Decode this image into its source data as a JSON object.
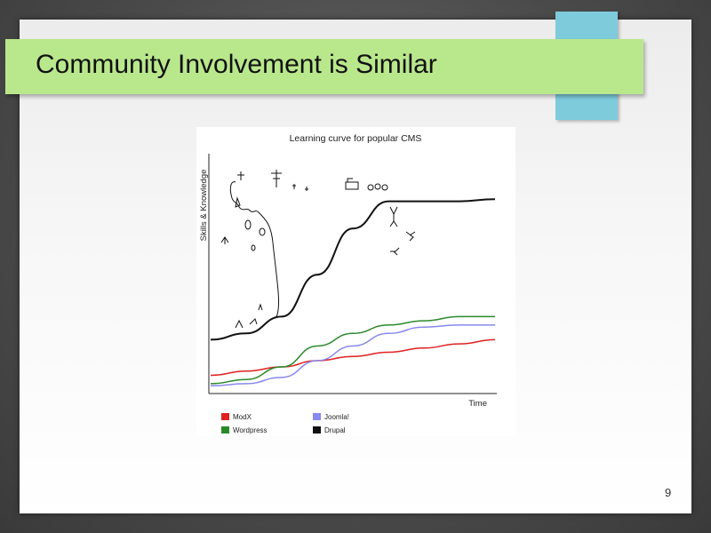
{
  "slide": {
    "title": "Community Involvement is Similar",
    "page_number": "9"
  },
  "chart_data": {
    "type": "line",
    "title": "Learning curve for popular CMS",
    "xlabel": "Time",
    "ylabel": "Skills & Knowledge",
    "x": [
      0,
      1,
      2,
      3,
      4,
      5,
      6,
      7,
      8
    ],
    "ylim": [
      0,
      100
    ],
    "series": [
      {
        "name": "ModX",
        "color": "#e02020",
        "values": [
          7,
          9,
          11,
          14,
          16,
          18,
          20,
          22,
          24
        ]
      },
      {
        "name": "Joomla!",
        "color": "#8888ee",
        "values": [
          2,
          3,
          6,
          14,
          21,
          27,
          30,
          31,
          31
        ]
      },
      {
        "name": "Wordpress",
        "color": "#2a8a2a",
        "values": [
          3,
          5,
          11,
          21,
          27,
          31,
          33,
          35,
          35
        ]
      },
      {
        "name": "Drupal",
        "color": "#111111",
        "values": [
          24,
          27,
          35,
          55,
          77,
          90,
          90,
          90,
          91
        ]
      }
    ],
    "legend": {
      "position": "bottom-left",
      "columns": 2
    },
    "grid": false
  }
}
